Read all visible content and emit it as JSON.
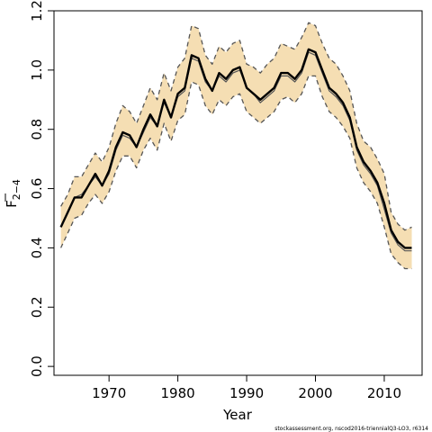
{
  "chart_data": {
    "type": "line",
    "xlabel": "Year",
    "ylabel": "F",
    "ylabel_subscript": "2−4",
    "xlim": [
      1962,
      2015.5
    ],
    "ylim": [
      -0.03,
      1.2
    ],
    "x_ticks": [
      1970,
      1980,
      1990,
      2000,
      2010
    ],
    "x_tick_labels": [
      "1970",
      "1980",
      "1990",
      "2000",
      "2010"
    ],
    "y_ticks": [
      0.0,
      0.2,
      0.4,
      0.6,
      0.8,
      1.0,
      1.2
    ],
    "y_tick_labels": [
      "0.0",
      "0.2",
      "0.4",
      "0.6",
      "0.8",
      "1.0",
      "1.2"
    ],
    "grid": false,
    "legend": null,
    "x": [
      1963,
      1964,
      1965,
      1966,
      1967,
      1968,
      1969,
      1970,
      1971,
      1972,
      1973,
      1974,
      1975,
      1976,
      1977,
      1978,
      1979,
      1980,
      1981,
      1982,
      1983,
      1984,
      1985,
      1986,
      1987,
      1988,
      1989,
      1990,
      1991,
      1992,
      1993,
      1994,
      1995,
      1996,
      1997,
      1998,
      1999,
      2000,
      2001,
      2002,
      2003,
      2004,
      2005,
      2006,
      2007,
      2008,
      2009,
      2010,
      2011,
      2012,
      2013,
      2014
    ],
    "series": [
      {
        "role": "estimate",
        "color": "#000000",
        "values": [
          0.47,
          0.52,
          0.57,
          0.57,
          0.61,
          0.65,
          0.61,
          0.66,
          0.74,
          0.79,
          0.78,
          0.74,
          0.8,
          0.85,
          0.81,
          0.9,
          0.84,
          0.92,
          0.94,
          1.05,
          1.04,
          0.97,
          0.93,
          0.99,
          0.97,
          1.0,
          1.01,
          0.94,
          0.92,
          0.9,
          0.92,
          0.94,
          0.99,
          0.99,
          0.97,
          1.0,
          1.07,
          1.06,
          1.0,
          0.94,
          0.92,
          0.89,
          0.84,
          0.74,
          0.69,
          0.66,
          0.62,
          0.55,
          0.46,
          0.42,
          0.4,
          0.4
        ]
      },
      {
        "role": "alt-estimate",
        "color": "#555555",
        "values": [
          0.47,
          0.52,
          0.57,
          0.58,
          0.61,
          0.64,
          0.61,
          0.65,
          0.73,
          0.78,
          0.77,
          0.74,
          0.79,
          0.84,
          0.81,
          0.89,
          0.84,
          0.91,
          0.93,
          1.04,
          1.03,
          0.96,
          0.93,
          0.98,
          0.96,
          0.99,
          1.0,
          0.94,
          0.92,
          0.89,
          0.91,
          0.93,
          0.98,
          0.98,
          0.96,
          0.99,
          1.06,
          1.05,
          0.99,
          0.93,
          0.91,
          0.88,
          0.83,
          0.73,
          0.68,
          0.65,
          0.61,
          0.53,
          0.45,
          0.41,
          0.39,
          0.39
        ]
      },
      {
        "role": "upper-bound",
        "color": "#555555",
        "dashed": true,
        "values": [
          0.54,
          0.58,
          0.64,
          0.64,
          0.68,
          0.72,
          0.69,
          0.74,
          0.82,
          0.88,
          0.86,
          0.82,
          0.88,
          0.94,
          0.9,
          0.99,
          0.93,
          1.01,
          1.04,
          1.15,
          1.14,
          1.05,
          1.02,
          1.08,
          1.06,
          1.09,
          1.1,
          1.02,
          1.01,
          0.99,
          1.02,
          1.04,
          1.09,
          1.08,
          1.07,
          1.11,
          1.16,
          1.15,
          1.09,
          1.04,
          1.02,
          0.98,
          0.93,
          0.82,
          0.76,
          0.74,
          0.7,
          0.65,
          0.52,
          0.48,
          0.46,
          0.47
        ]
      },
      {
        "role": "lower-bound",
        "color": "#555555",
        "dashed": true,
        "values": [
          0.4,
          0.45,
          0.5,
          0.51,
          0.55,
          0.58,
          0.55,
          0.59,
          0.66,
          0.71,
          0.71,
          0.67,
          0.73,
          0.77,
          0.73,
          0.82,
          0.76,
          0.83,
          0.85,
          0.96,
          0.95,
          0.88,
          0.85,
          0.9,
          0.88,
          0.91,
          0.92,
          0.86,
          0.84,
          0.82,
          0.84,
          0.86,
          0.9,
          0.91,
          0.89,
          0.92,
          0.98,
          0.98,
          0.91,
          0.86,
          0.84,
          0.81,
          0.77,
          0.67,
          0.62,
          0.59,
          0.55,
          0.47,
          0.38,
          0.35,
          0.33,
          0.33
        ]
      }
    ],
    "band_color": "#f5deb3"
  },
  "footer": {
    "note": "stockassessment.org, nscod2016-triennialQ3-LO3, r6314"
  }
}
